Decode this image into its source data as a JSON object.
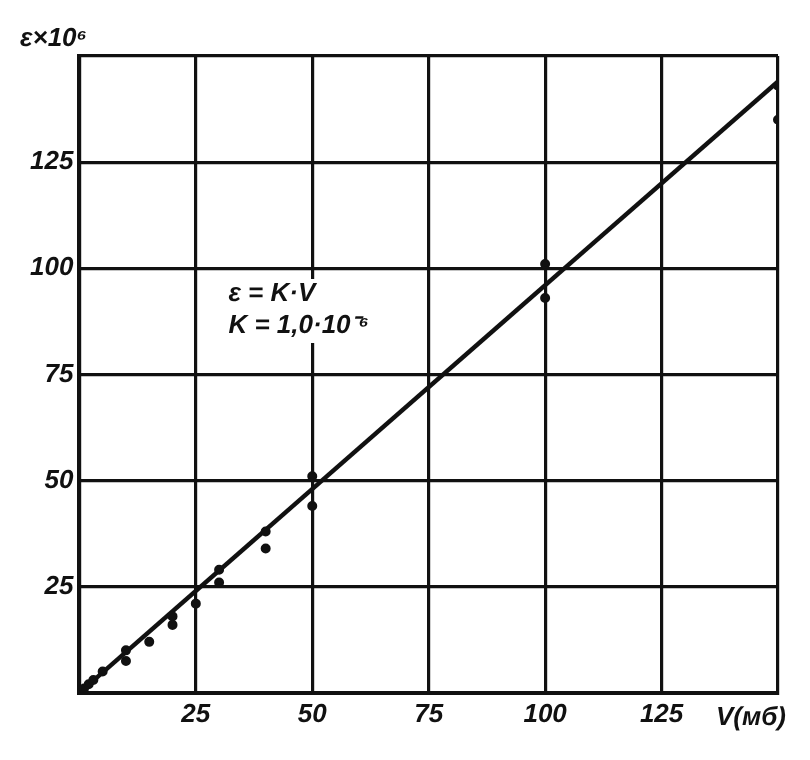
{
  "chart_data": {
    "type": "scatter",
    "xlabel": "V(мб)",
    "ylabel": "ε×10⁶",
    "annotations": [
      "ε = K·V",
      "K = 1,0·10⁻⁶"
    ],
    "xlim": [
      0,
      150
    ],
    "ylim": [
      0,
      150
    ],
    "xticks": [
      25,
      50,
      75,
      100,
      125
    ],
    "yticks": [
      25,
      50,
      75,
      100,
      125
    ],
    "grid": true,
    "legend": false,
    "series": [
      {
        "marker": "circle",
        "color": "#111111",
        "x": [
          1,
          2,
          3,
          5,
          10,
          10,
          15,
          20,
          20,
          25,
          30,
          30,
          40,
          40,
          50,
          50,
          100,
          100,
          150,
          150
        ],
        "values": [
          1,
          2,
          3,
          5,
          10,
          7.5,
          12,
          18,
          16,
          21,
          26,
          29,
          38,
          34,
          51,
          44,
          101,
          93,
          143,
          135
        ]
      },
      {
        "type": "line",
        "color": "#111111",
        "x": [
          0,
          150
        ],
        "values": [
          0,
          144
        ]
      }
    ]
  }
}
